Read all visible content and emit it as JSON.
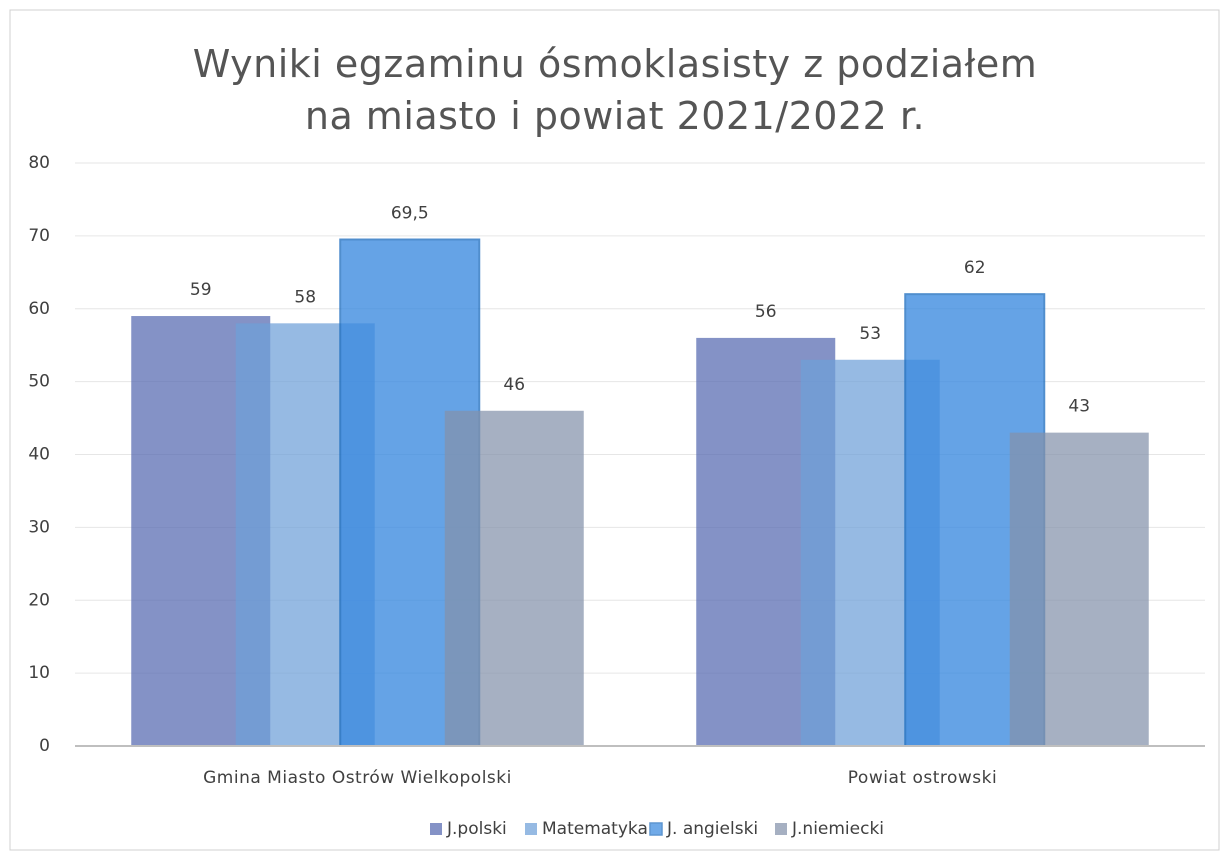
{
  "chart_data": {
    "type": "bar",
    "title": "Wyniki egzaminu ósmoklasisty z podziałem na miasto i powiat 2021/2022 r.",
    "categories": [
      "Gmina Miasto Ostrów Wielkopolski",
      "Powiat ostrowski"
    ],
    "series": [
      {
        "name": "J.polski",
        "color": "#5568b0",
        "values": [
          59,
          56
        ]
      },
      {
        "name": "Matematyka",
        "color": "#6ea0d8",
        "values": [
          58,
          53
        ]
      },
      {
        "name": "J. angielski",
        "color": "#3a8ae0",
        "values": [
          69.5,
          62
        ],
        "value_labels": [
          "69,5",
          "62"
        ],
        "border": "#1f6fc0"
      },
      {
        "name": "J.niemiecki",
        "color": "#8391ab",
        "values": [
          46,
          43
        ]
      }
    ],
    "ylim": [
      0,
      80
    ],
    "yticks": [
      0,
      10,
      20,
      30,
      40,
      50,
      60,
      70,
      80
    ],
    "grid": true,
    "legend": "bottom"
  }
}
